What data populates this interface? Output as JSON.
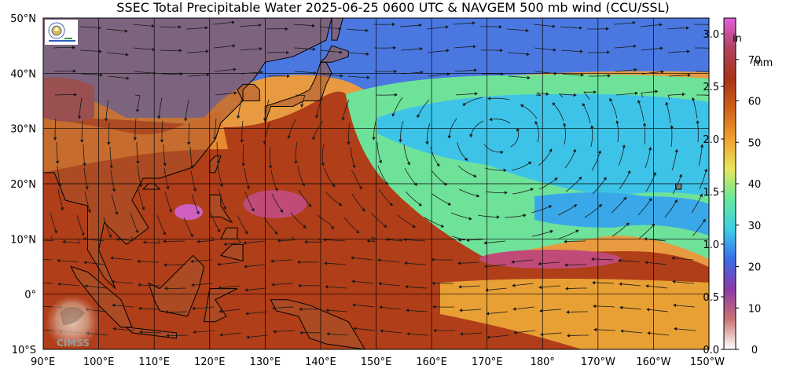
{
  "title": "SSEC Total Precipitable Water  2025-06-25 0600 UTC & NAVGEM 500 mb wind (CCU/SSL)",
  "map": {
    "lon_range": [
      90,
      210
    ],
    "lat_range": [
      -10,
      50
    ],
    "lat_labels": [
      {
        "lat": 50,
        "label": "50°N"
      },
      {
        "lat": 40,
        "label": "40°N"
      },
      {
        "lat": 30,
        "label": "30°N"
      },
      {
        "lat": 20,
        "label": "20°N"
      },
      {
        "lat": 10,
        "label": "10°N"
      },
      {
        "lat": 0,
        "label": "0°"
      },
      {
        "lat": -10,
        "label": "10°S"
      }
    ],
    "lon_labels": [
      {
        "lon": 90,
        "label": "90°E"
      },
      {
        "lon": 100,
        "label": "100°E"
      },
      {
        "lon": 110,
        "label": "110°E"
      },
      {
        "lon": 120,
        "label": "120°E"
      },
      {
        "lon": 130,
        "label": "130°E"
      },
      {
        "lon": 140,
        "label": "140°E"
      },
      {
        "lon": 150,
        "label": "150°E"
      },
      {
        "lon": 160,
        "label": "160°E"
      },
      {
        "lon": 170,
        "label": "170°E"
      },
      {
        "lon": 180,
        "label": "180°"
      },
      {
        "lon": 190,
        "label": "170°W"
      },
      {
        "lon": 200,
        "label": "160°W"
      },
      {
        "lon": 210,
        "label": "150°W"
      }
    ]
  },
  "colorbar": {
    "in_unit": "in",
    "mm_unit": "mm",
    "in_ticks": [
      {
        "value": 0.0,
        "label": "0.0"
      },
      {
        "value": 0.5,
        "label": "0.5"
      },
      {
        "value": 1.0,
        "label": "1.0"
      },
      {
        "value": 1.5,
        "label": "1.5"
      },
      {
        "value": 2.0,
        "label": "2.0"
      },
      {
        "value": 2.5,
        "label": "2.5"
      },
      {
        "value": 3.0,
        "label": "3.0"
      }
    ],
    "mm_ticks": [
      {
        "value": 0,
        "label": "0"
      },
      {
        "value": 10,
        "label": "10"
      },
      {
        "value": 20,
        "label": "20"
      },
      {
        "value": 30,
        "label": "30"
      },
      {
        "value": 40,
        "label": "40"
      },
      {
        "value": 50,
        "label": "50"
      },
      {
        "value": 60,
        "label": "60"
      },
      {
        "value": 70,
        "label": "70"
      }
    ],
    "mm_max": 80,
    "colors": [
      "#ffffff",
      "#c87474",
      "#8a3aa8",
      "#3a6ee8",
      "#3ecfe6",
      "#66e89a",
      "#e8e65a",
      "#f0a030",
      "#d06018",
      "#a83418",
      "#b04460",
      "#e060d8"
    ]
  },
  "logos": {
    "cimss_text": "CIMSS"
  },
  "colors": {
    "land_fill": "#a8542e",
    "grid": "#000000",
    "coastline": "#000000",
    "wind": "#1a1a1a"
  }
}
